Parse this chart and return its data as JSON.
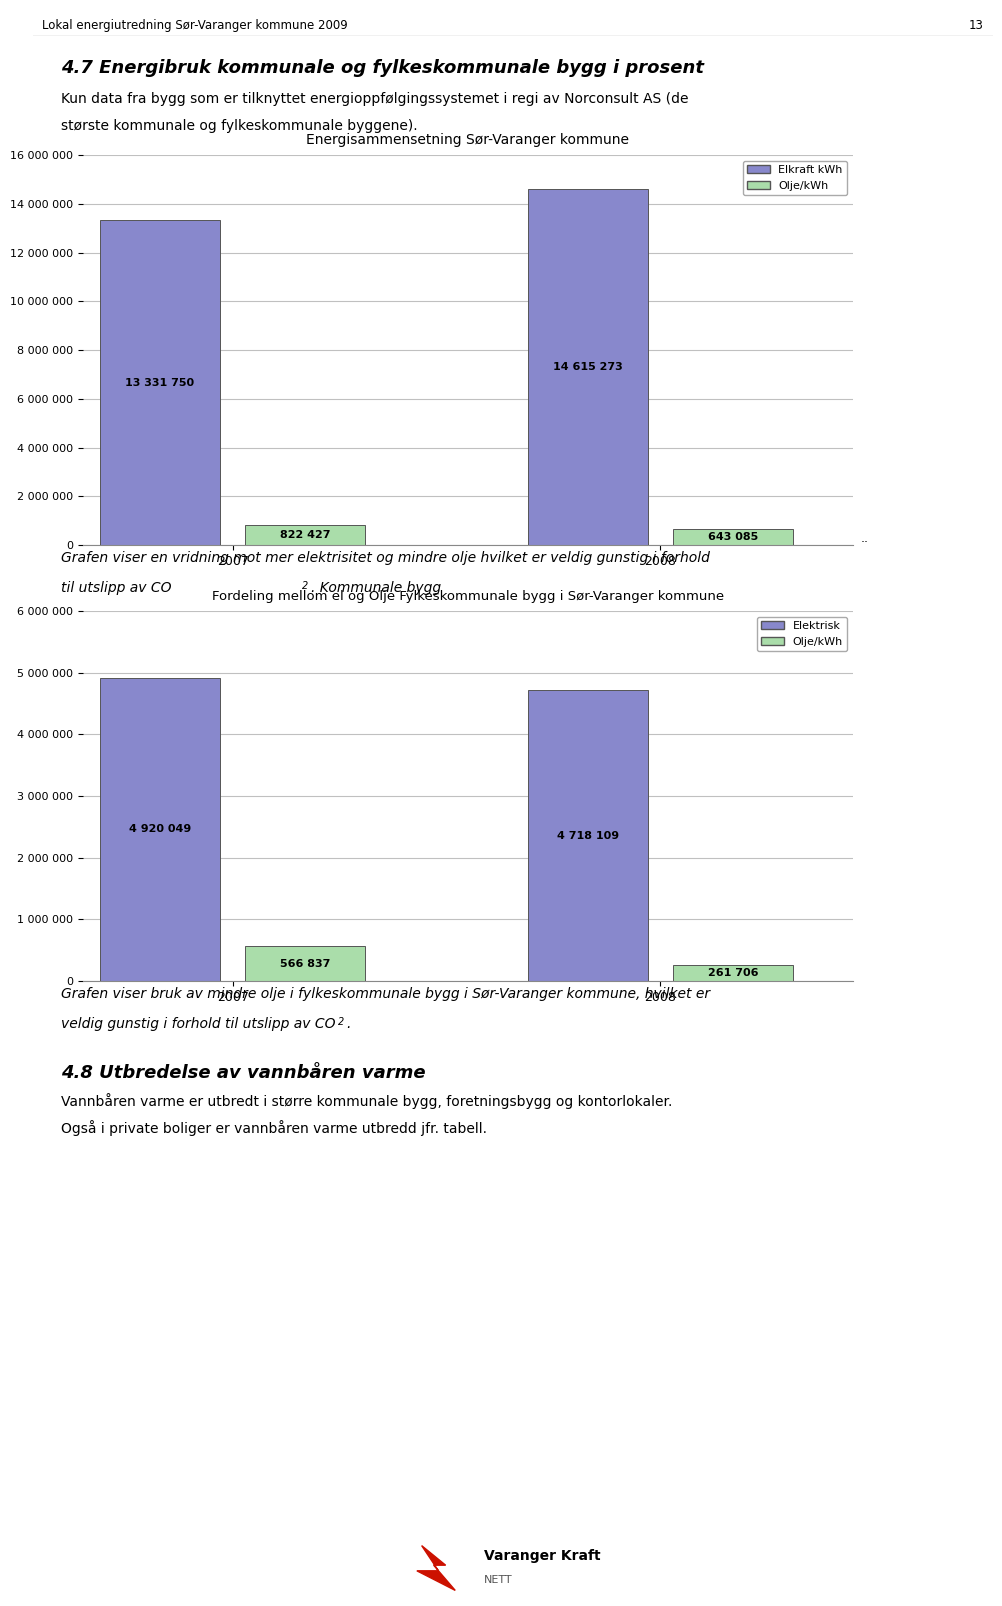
{
  "page_header": "Lokal energiutredning Sør-Varanger kommune 2009",
  "page_number": "13",
  "section_title": "4.7 Energibruk kommunale og fylkeskommunale bygg i prosent",
  "section_text_line1": "Kun data fra bygg som er tilknyttet energioppfølgingssystemet i regi av Norconsult AS (de",
  "section_text_line2": "største kommunale og fylkeskommunale byggene).",
  "chart1_title": "Energisammensetning Sør-Varanger kommune",
  "chart1_years": [
    "2007",
    "2008"
  ],
  "chart1_elkraft": [
    13331750,
    14615273
  ],
  "chart1_olje": [
    822427,
    643085
  ],
  "chart1_ylim": [
    0,
    16000000
  ],
  "chart1_yticks": [
    0,
    2000000,
    4000000,
    6000000,
    8000000,
    10000000,
    12000000,
    14000000,
    16000000
  ],
  "chart1_legend_elkraft": "Elkraft kWh",
  "chart1_legend_olje": "Olje/kWh",
  "chart1_bar_color_el": "#8888cc",
  "chart1_bar_color_olje": "#aaddaa",
  "chart1_text_line1": "Grafen viser en vridning mot mer elektrisitet og mindre olje hvilket er veldig gunstig i forhold",
  "chart1_text_line2": "til utslipp av CO",
  "chart1_text_line2_super": "2",
  "chart1_text_line2_end": ". Kommunale bygg",
  "chart2_title": "Fordeling mellom el og Olje Fylkeskommunale bygg i Sør-Varanger kommune",
  "chart2_years": [
    "2007",
    "2008"
  ],
  "chart2_elkraft": [
    4920049,
    4718109
  ],
  "chart2_olje": [
    566837,
    261706
  ],
  "chart2_ylim": [
    0,
    6000000
  ],
  "chart2_yticks": [
    0,
    1000000,
    2000000,
    3000000,
    4000000,
    5000000,
    6000000
  ],
  "chart2_legend_elkraft": "Elektrisk",
  "chart2_legend_olje": "Olje/kWh",
  "chart2_bar_color_el": "#8888cc",
  "chart2_bar_color_olje": "#aaddaa",
  "chart2_text_line1": "Grafen viser bruk av mindre olje i fylkeskommunale bygg i Sør-Varanger kommune, hvilket er",
  "chart2_text_line2": "veldig gunstig i forhold til utslipp av CO",
  "chart2_text_line2_super": "2",
  "chart2_text_line2_end": ".",
  "section2_title": "4.8 Utbredelse av vannbåren varme",
  "section2_text_line1": "Vannbåren varme er utbredt i større kommunale bygg, foretningsbygg og kontorlokaler.",
  "section2_text_line2": "Også i private boliger er vannbåren varme utbredd jfr. tabell.",
  "bg_color": "#ffffff",
  "grid_color": "#c0c0c0",
  "text_color": "#000000"
}
